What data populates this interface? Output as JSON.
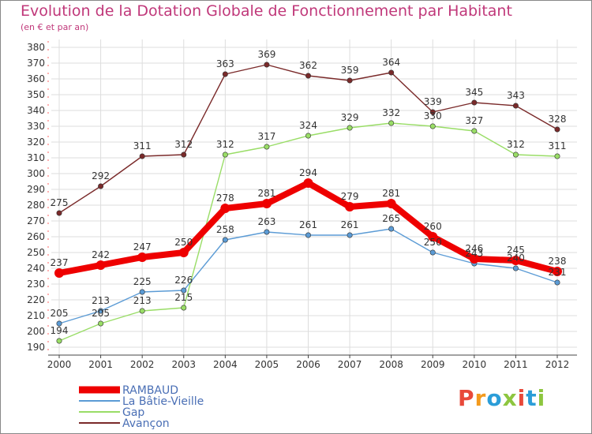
{
  "title": "Evolution de la Dotation Globale de Fonctionnement par Habitant",
  "subtitle": "(en € et par an)",
  "logo": {
    "text": "Proxiti",
    "colors": [
      "#e8493a",
      "#f39a1d",
      "#2b9dd8",
      "#8dc63f",
      "#e8493a",
      "#2b9dd8",
      "#8dc63f"
    ]
  },
  "chart_data": {
    "type": "line",
    "x": [
      "2000",
      "2001",
      "2002",
      "2003",
      "2004",
      "2005",
      "2006",
      "2007",
      "2008",
      "2009",
      "2010",
      "2011",
      "2012"
    ],
    "ylim": [
      190,
      380
    ],
    "yticks": [
      190,
      200,
      210,
      220,
      230,
      240,
      250,
      260,
      270,
      280,
      290,
      300,
      310,
      320,
      330,
      340,
      350,
      360,
      370,
      380
    ],
    "grid": true,
    "legend": "bottom-left",
    "series": [
      {
        "name": "RAMBAUD",
        "color": "#ee0000",
        "values": [
          237,
          242,
          247,
          250,
          278,
          281,
          294,
          279,
          281,
          260,
          246,
          245,
          238
        ]
      },
      {
        "name": "La Bâtie-Vieille",
        "color": "#5b9bd5",
        "values": [
          205,
          213,
          225,
          226,
          258,
          263,
          261,
          261,
          265,
          250,
          243,
          240,
          231
        ]
      },
      {
        "name": "Gap",
        "color": "#99dd66",
        "values": [
          194,
          205,
          213,
          215,
          312,
          317,
          324,
          329,
          332,
          330,
          327,
          312,
          311
        ]
      },
      {
        "name": "Avançon",
        "color": "#7a2a2a",
        "values": [
          275,
          292,
          311,
          312,
          363,
          369,
          362,
          359,
          364,
          339,
          345,
          343,
          328
        ]
      }
    ]
  }
}
